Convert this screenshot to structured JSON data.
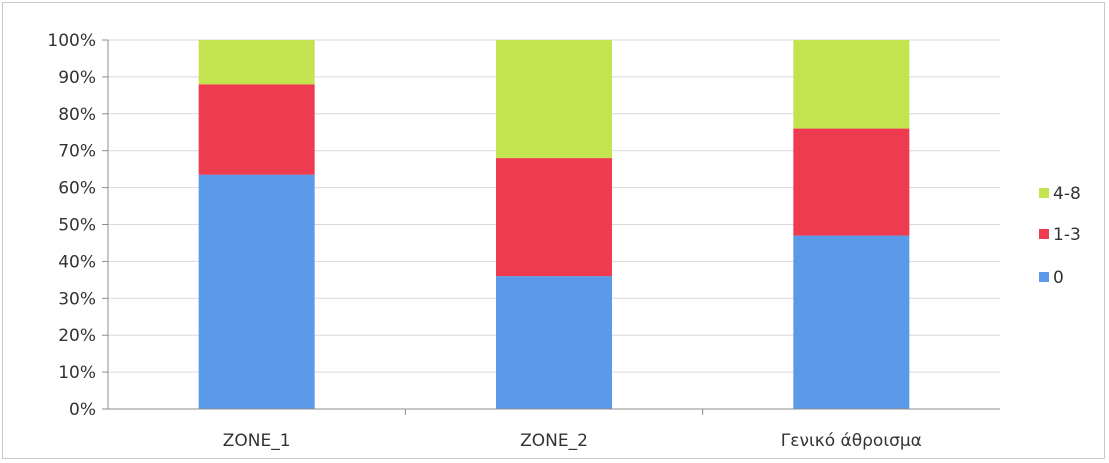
{
  "chart_data": {
    "type": "bar",
    "stacked": true,
    "percent": true,
    "categories": [
      "ZONE_1",
      "ZONE_2",
      "Γενικό άθροισμα"
    ],
    "series": [
      {
        "name": "0",
        "color": "#5b9ae8",
        "values": [
          63.5,
          36,
          47
        ]
      },
      {
        "name": "1-3",
        "color": "#ef3b4f",
        "values": [
          24.5,
          32,
          29
        ]
      },
      {
        "name": "4-8",
        "color": "#c3e34f",
        "values": [
          12,
          32,
          24
        ]
      }
    ],
    "yticks": [
      "0%",
      "10%",
      "20%",
      "30%",
      "40%",
      "50%",
      "60%",
      "70%",
      "80%",
      "90%",
      "100%"
    ],
    "ylim": [
      0,
      100
    ],
    "legend_order": [
      "4-8",
      "1-3",
      "0"
    ],
    "legend_position": "right",
    "grid": true
  }
}
